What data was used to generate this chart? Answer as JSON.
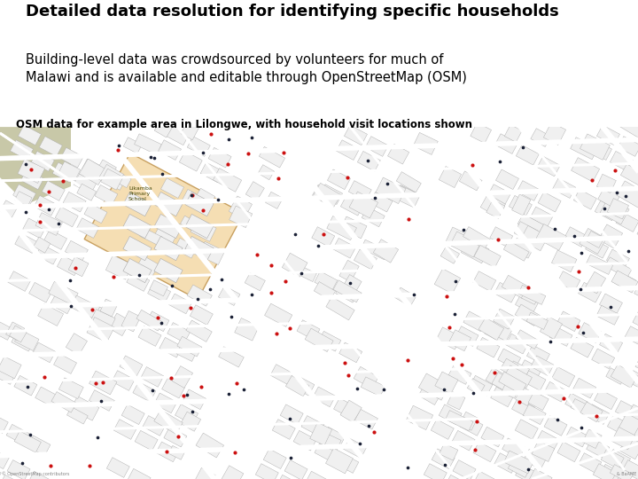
{
  "title": "Detailed data resolution for identifying specific households",
  "subtitle": "Building-level data was crowdsourced by volunteers for much of\nMalawi and is available and editable through OpenStreetMap (OSM)",
  "caption": "OSM data for example area in Lilongwe, with household visit locations shown",
  "bg_color": "#ffffff",
  "map_bg": "#b0b0b0",
  "road_color": "#ffffff",
  "building_color": "#f0f0f0",
  "school_bg": "#f5deb3",
  "greenpatch_color": "#c8c8a8",
  "title_fontsize": 13,
  "subtitle_fontsize": 10.5,
  "caption_fontsize": 8.5,
  "dot_red": "#cc1111",
  "dot_dark": "#1a2035"
}
